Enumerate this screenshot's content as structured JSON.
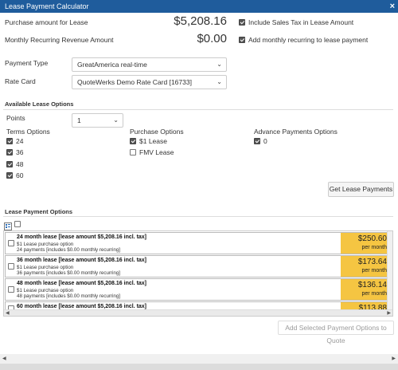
{
  "window": {
    "title": "Lease Payment Calculator",
    "close_glyph": "×"
  },
  "purchase": {
    "label": "Purchase amount for Lease",
    "amount": "$5,208.16",
    "checkbox_label": "Include Sales Tax in Lease Amount",
    "checked": true
  },
  "recurring": {
    "label": "Monthly Recurring Revenue Amount",
    "amount": "$0.00",
    "checkbox_label": "Add monthly recurring to lease payment",
    "checked": true
  },
  "payment_type": {
    "label": "Payment Type",
    "value": "GreatAmerica real-time"
  },
  "rate_card": {
    "label": "Rate Card",
    "value": "QuoteWerks Demo Rate Card [16733]"
  },
  "available": {
    "title": "Available Lease Options",
    "points_label": "Points",
    "points_value": "1",
    "terms_title": "Terms Options",
    "terms": [
      "24",
      "36",
      "48",
      "60"
    ],
    "purchase_title": "Purchase Options",
    "purchase_options": [
      {
        "label": "$1 Lease",
        "checked": true
      },
      {
        "label": "FMV Lease",
        "checked": false
      }
    ],
    "advance_title": "Advance Payments Options",
    "advance_options": [
      "0"
    ],
    "get_button": "Get Lease Payments"
  },
  "payment_options": {
    "title": "Lease Payment Options",
    "items": [
      {
        "title": "24 month lease [lease amount $5,208.16 incl. tax]",
        "line1": "$1 Lease purchase option",
        "line2": "24 payments [includes $0.00 monthly recurring]",
        "price": "$250.60",
        "per": "per month"
      },
      {
        "title": "36 month lease [lease amount $5,208.16 incl. tax]",
        "line1": "$1 Lease purchase option",
        "line2": "36 payments [includes $0.00 monthly recurring]",
        "price": "$173.64",
        "per": "per month"
      },
      {
        "title": "48 month lease [lease amount $5,208.16 incl. tax]",
        "line1": "$1 Lease purchase option",
        "line2": "48 payments [includes $0.00 monthly recurring]",
        "price": "$136.14",
        "per": "per month"
      },
      {
        "title": "60 month lease [lease amount $5,208.16 incl. tax]",
        "price": "$113.88"
      }
    ],
    "add_button": "Add Selected Payment Options to Quote"
  },
  "icons": {
    "close": "close-icon",
    "select_all": "select-all-icon",
    "caret": "chevron-down-icon"
  },
  "colors": {
    "titlebar": "#1f5c9c",
    "price_bg": "#f5c542"
  }
}
